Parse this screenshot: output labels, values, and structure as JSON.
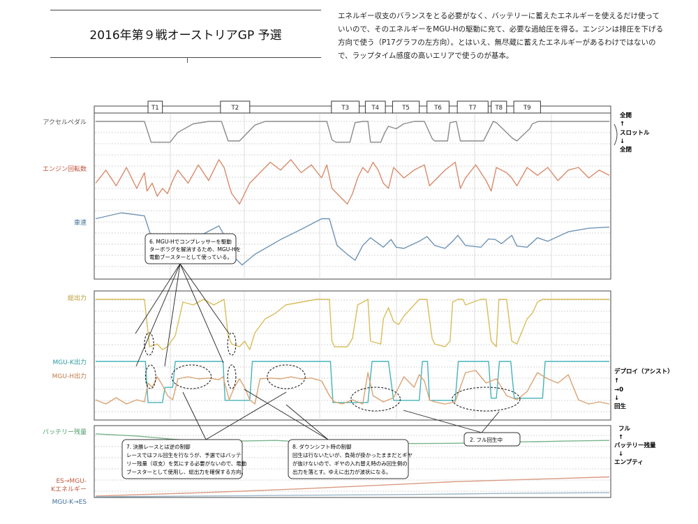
{
  "header": {
    "title": "2016年第９戦オーストリアGP 予選",
    "description": "エネルギー収支のバランスをとる必要がなく、バッテリーに蓄えたエネルギーを使えるだけ使っていいので、そのエネルギーをMGU-Hの駆動に充て、必要な過給圧を得る。エンジンは排圧を下げる方向で使う（P17グラフの左方向）。とはいえ、無尽蔵に蓄えたエネルギーがあるわけではないので、ラップタイム感度の高いエリアで使うのが基本。"
  },
  "colors": {
    "throttle": "#8a8a8a",
    "rpm": "#d98a6a",
    "speed": "#6f93b5",
    "total_power": "#d8bd5a",
    "mgu_k": "#45b3b8",
    "mgu_h": "#d9a273",
    "battery": "#78b48c",
    "es_to_mguk": "#d99a82",
    "mguk_to_es": "#9bb6c6",
    "label_throttle": "#555555",
    "label_rpm": "#c0533a",
    "label_speed": "#3f6f9a",
    "label_total": "#b89a2e",
    "label_mguk": "#2a9aa0",
    "label_mguh": "#c07a45",
    "label_battery": "#4a9a66",
    "label_es_mguk": "#c05a40",
    "label_mguk_es": "#3f6f9a"
  },
  "corners": [
    "T1",
    "T2",
    "T3",
    "T4",
    "T5",
    "T6",
    "T7",
    "T8",
    "T9"
  ],
  "panel1": {
    "labels": {
      "throttle": "アクセルペダル",
      "rpm": "エンジン回転数",
      "speed": "車速"
    },
    "right": {
      "top": "全開",
      "up": "↑",
      "mid": "スロットル",
      "down": "↓",
      "bottom": "全閉"
    }
  },
  "panel2": {
    "labels": {
      "total": "総出力",
      "mguk": "MGU-K出力",
      "mguh": "MGU-H出力"
    },
    "right": {
      "top": "デプロイ（アシスト）",
      "up": "↑",
      "mid": "→0",
      "down": "↓",
      "bottom": "回生"
    }
  },
  "panel3": {
    "labels": {
      "battery": "バッテリー残量",
      "es_line1": "ES→MGU-",
      "es_line2": "Kエネルギー",
      "mguk_es": "MGU-K→ES"
    },
    "right": {
      "top": "フル",
      "up": "↑",
      "mid": "バッテリー残量",
      "down": "↓",
      "bottom": "エンプティ"
    }
  },
  "annotations": {
    "a6": {
      "line1": "6. MGU-Hでコンプレッサーを駆動",
      "line2": "ターボラグを解消するため、MGU-Hを",
      "line3": "電動ブースターとして使っている。"
    },
    "a7": {
      "line1": "7. 決勝レースとは逆の制御",
      "line2": "レースではフル回生を行なうが、予選ではバッテ",
      "line3": "リー残量（収支）を気にする必要がないので、電動",
      "line4": "ブースターとして使用し、総出力を確保する方向。"
    },
    "a8": {
      "line1": "8. ダウンシフト時の制御",
      "line2": "回生は行ないたいが、負荷が掛かったままだとギヤ",
      "line3": "が抜けないので、ギヤの入れ替え時のみ回生側の",
      "line4": "出力を落とす。ゆえに出力が波状になる。"
    },
    "a2": {
      "text": "2. フル回生中"
    }
  },
  "chart_data": {
    "type": "line",
    "x_domain": [
      0,
      100
    ],
    "corner_zones": [
      {
        "name": "T1",
        "x": [
          10.2,
          13.0
        ]
      },
      {
        "name": "T2",
        "x": [
          24.3,
          30.0
        ]
      },
      {
        "name": "T3",
        "x": [
          45.9,
          51.3
        ]
      },
      {
        "name": "T4",
        "x": [
          52.5,
          56.4
        ]
      },
      {
        "name": "T5",
        "x": [
          57.8,
          63.0
        ]
      },
      {
        "name": "T6",
        "x": [
          64.5,
          68.8
        ]
      },
      {
        "name": "T7",
        "x": [
          70.4,
          76.4
        ]
      },
      {
        "name": "T8",
        "x": [
          77.0,
          80.0
        ]
      },
      {
        "name": "T9",
        "x": [
          81.4,
          86.6
        ]
      }
    ],
    "series": [
      {
        "name": "アクセルペダル",
        "x": [
          0,
          5,
          9.5,
          10.8,
          14.5,
          16,
          19,
          22,
          24.5,
          25.8,
          28,
          31,
          33,
          45,
          46,
          46.8,
          49.5,
          50.5,
          52,
          53,
          53.5,
          55.5,
          56.3,
          57,
          58.5,
          60,
          62,
          64,
          65.5,
          66,
          68.5,
          69,
          70.2,
          71,
          75.5,
          77.4,
          78,
          81.2,
          82,
          84.5,
          85,
          86.2,
          88,
          100
        ],
        "y": [
          1,
          1,
          1,
          0.15,
          0.15,
          0.55,
          0.9,
          1,
          1,
          0.2,
          0.2,
          0.85,
          1,
          1,
          0.25,
          0.15,
          0.15,
          0.95,
          1,
          1,
          0.15,
          0.15,
          0.55,
          0.8,
          0.7,
          0.9,
          1,
          1,
          0.3,
          0.2,
          0.2,
          0.95,
          1,
          0.2,
          0.2,
          1,
          0.95,
          0.3,
          0.2,
          0.7,
          0.9,
          1,
          1,
          1
        ]
      },
      {
        "name": "エンジン回転数",
        "x": [
          0,
          2,
          4,
          6,
          8,
          9.5,
          10,
          11,
          12,
          13,
          14,
          15,
          16,
          18,
          20,
          22,
          24,
          25,
          26,
          26.5,
          28,
          30,
          32,
          34,
          36,
          38,
          40,
          42,
          44,
          45,
          46,
          47,
          48,
          49,
          50,
          51,
          52,
          53,
          54,
          55,
          56,
          57,
          58,
          60,
          62,
          64,
          65,
          66,
          68,
          70,
          71,
          72,
          74,
          76,
          77,
          78,
          80,
          81,
          82,
          84,
          86,
          88,
          90,
          92,
          94,
          96,
          98,
          100
        ],
        "y": [
          0.5,
          0.75,
          0.45,
          0.8,
          0.4,
          0.7,
          0.35,
          0.5,
          0.25,
          0.4,
          0.3,
          0.55,
          0.75,
          0.5,
          0.85,
          0.55,
          0.95,
          0.8,
          0.45,
          0.3,
          0.1,
          0.5,
          0.7,
          0.9,
          0.75,
          0.95,
          0.7,
          0.85,
          0.6,
          0.85,
          0.4,
          0.3,
          0.2,
          0.1,
          0.3,
          0.6,
          0.8,
          0.7,
          0.9,
          0.75,
          0.5,
          0.4,
          0.8,
          0.6,
          0.75,
          0.85,
          0.45,
          0.55,
          0.75,
          0.9,
          0.4,
          0.6,
          0.85,
          0.55,
          0.35,
          0.8,
          0.7,
          0.6,
          0.45,
          0.8,
          0.65,
          0.8,
          0.55,
          0.75,
          0.8,
          0.6,
          0.75,
          0.65
        ]
      },
      {
        "name": "車速",
        "x": [
          0,
          5,
          9.5,
          11,
          13,
          14.5,
          16,
          20,
          24,
          25.5,
          27,
          28.5,
          31,
          36,
          40,
          44,
          45.5,
          47,
          49,
          50.5,
          52,
          53.5,
          56,
          57.5,
          58.5,
          60,
          63,
          64.5,
          66,
          68,
          69.5,
          70.5,
          72,
          75,
          76.5,
          77.8,
          79,
          81,
          82,
          84,
          86,
          88,
          92,
          96,
          100
        ],
        "y": [
          0.9,
          1,
          0.95,
          0.55,
          0.35,
          0.3,
          0.4,
          0.6,
          0.78,
          0.55,
          0.25,
          0.12,
          0.3,
          0.55,
          0.72,
          0.9,
          0.9,
          0.45,
          0.3,
          0.2,
          0.45,
          0.58,
          0.42,
          0.55,
          0.42,
          0.4,
          0.52,
          0.6,
          0.45,
          0.4,
          0.52,
          0.62,
          0.45,
          0.42,
          0.56,
          0.55,
          0.48,
          0.62,
          0.44,
          0.42,
          0.58,
          0.52,
          0.68,
          0.74,
          0.76
        ]
      },
      {
        "name": "総出力",
        "x": [
          0,
          9.5,
          10.5,
          12,
          13,
          14,
          15.5,
          17,
          19,
          21,
          23,
          25,
          25.8,
          26.5,
          28,
          29,
          30,
          31,
          33,
          35,
          37,
          40,
          43,
          45.5,
          46,
          46.5,
          49,
          50,
          51,
          53,
          53.5,
          55.5,
          56,
          57,
          58,
          59,
          60,
          61,
          62,
          63,
          64.5,
          65.5,
          66,
          68,
          69,
          69.5,
          70.5,
          71.5,
          72,
          75,
          76,
          77,
          78,
          78.5,
          80,
          81,
          82,
          84,
          85,
          86,
          87,
          88,
          92,
          96,
          100
        ],
        "y": [
          0.95,
          0.95,
          0.1,
          0.15,
          0.05,
          0.1,
          0.3,
          0.9,
          0.85,
          0.95,
          0.85,
          0.95,
          0.3,
          0.15,
          0.1,
          0.2,
          0.05,
          0.35,
          0.6,
          0.7,
          0.85,
          0.9,
          0.95,
          0.95,
          0.2,
          0.1,
          0.1,
          0.25,
          0.85,
          0.95,
          0.2,
          0.15,
          0.6,
          0.8,
          0.55,
          0.5,
          0.65,
          0.75,
          0.85,
          0.95,
          0.95,
          0.25,
          0.15,
          0.1,
          0.2,
          0.9,
          0.95,
          0.95,
          0.85,
          0.95,
          0.95,
          0.2,
          0.1,
          0.95,
          0.95,
          0.2,
          0.15,
          0.6,
          0.7,
          0.9,
          0.95,
          0.95,
          0.95,
          0.95,
          0.95
        ]
      },
      {
        "name": "MGU-K出力",
        "x": [
          0,
          9.7,
          10.2,
          13,
          13.5,
          15,
          15.5,
          24.8,
          25.2,
          30,
          30.5,
          45.7,
          46.2,
          53,
          53.8,
          57,
          58,
          63,
          63.6,
          64.6,
          65,
          70,
          70.6,
          76.5,
          77,
          78,
          78.6,
          80.8,
          81.5,
          87,
          87.5,
          100
        ],
        "y": [
          1,
          1,
          0.05,
          0.05,
          0.4,
          0.4,
          1,
          1,
          0.1,
          0.1,
          1,
          1,
          0.05,
          0.05,
          1,
          1,
          0.1,
          0.1,
          1,
          1,
          0.1,
          0.1,
          1,
          1,
          0.15,
          0.15,
          1,
          1,
          0.15,
          0.15,
          1,
          1
        ]
      },
      {
        "name": "MGU-H出力",
        "x": [
          0,
          2,
          4,
          6,
          8,
          9.5,
          10.2,
          11,
          12,
          13,
          14,
          15,
          16,
          18,
          20,
          22,
          24,
          24.8,
          26,
          27,
          28,
          29,
          30,
          31,
          32,
          34,
          36,
          38,
          40,
          42,
          44,
          45.5,
          46.5,
          48,
          50,
          52,
          53,
          54,
          56,
          58,
          60,
          62,
          63,
          64,
          65,
          66,
          68,
          70,
          72,
          74,
          76,
          78,
          80,
          82,
          84,
          86,
          88,
          90,
          92,
          94,
          96,
          98,
          100
        ],
        "y": [
          0.2,
          0.1,
          0.25,
          0.1,
          0.2,
          0.15,
          0.6,
          0.5,
          0.75,
          0.55,
          0.3,
          0.2,
          0.7,
          0.75,
          0.7,
          0.72,
          0.68,
          0.75,
          0.2,
          0.5,
          0.7,
          0.5,
          0.2,
          0.1,
          0.7,
          0.72,
          0.7,
          0.75,
          0.7,
          0.72,
          0.65,
          0.3,
          0.15,
          0.1,
          0.2,
          0.1,
          0.85,
          0.3,
          0.15,
          0.25,
          0.75,
          0.5,
          0.8,
          0.65,
          0.2,
          0.15,
          0.1,
          0.15,
          0.85,
          0.9,
          0.6,
          0.7,
          0.3,
          0.2,
          0.4,
          0.85,
          0.7,
          0.6,
          0.8,
          0.2,
          0.1,
          0.15,
          0.1
        ]
      },
      {
        "name": "バッテリー残量",
        "x": [
          0,
          8,
          15,
          22,
          28,
          35,
          42,
          48,
          55,
          62,
          70,
          78,
          86,
          92,
          100
        ],
        "y": [
          0.85,
          0.78,
          0.68,
          0.6,
          0.62,
          0.64,
          0.58,
          0.54,
          0.56,
          0.54,
          0.55,
          0.58,
          0.6,
          0.62,
          0.64
        ]
      },
      {
        "name": "ES→MGU-Kエネルギー",
        "x": [
          0,
          10,
          20,
          30,
          40,
          50,
          60,
          70,
          80,
          90,
          100
        ],
        "y": [
          0.02,
          0.06,
          0.1,
          0.15,
          0.2,
          0.26,
          0.32,
          0.38,
          0.42,
          0.46,
          0.5
        ]
      },
      {
        "name": "MGU-K→ES",
        "x": [
          0,
          10,
          20,
          30,
          40,
          50,
          60,
          70,
          80,
          90,
          100
        ],
        "y": [
          0.0,
          0.02,
          0.04,
          0.06,
          0.08,
          0.1,
          0.12,
          0.15,
          0.18,
          0.2,
          0.22
        ]
      }
    ],
    "highlights": [
      {
        "target": "総出力",
        "x": [
          9.5,
          11.3
        ]
      },
      {
        "target": "総出力",
        "x": [
          25.7,
          27.3
        ]
      },
      {
        "target": "MGU-H出力",
        "x": [
          9.7,
          11.7
        ]
      },
      {
        "target": "MGU-H出力",
        "x": [
          14.8,
          22.5
        ]
      },
      {
        "target": "MGU-H出力",
        "x": [
          25.7,
          27.3
        ]
      },
      {
        "target": "MGU-H出力",
        "x": [
          33.4,
          40.8
        ]
      },
      {
        "target": "MGU-H出力",
        "x": [
          49.7,
          59.3
        ]
      },
      {
        "target": "MGU-H出力",
        "x": [
          69.4,
          82.6
        ]
      }
    ]
  }
}
